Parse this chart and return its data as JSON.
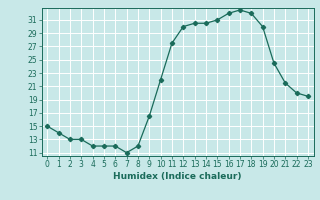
{
  "x": [
    0,
    1,
    2,
    3,
    4,
    5,
    6,
    7,
    8,
    9,
    10,
    11,
    12,
    13,
    14,
    15,
    16,
    17,
    18,
    19,
    20,
    21,
    22,
    23
  ],
  "y": [
    15,
    14,
    13,
    13,
    12,
    12,
    12,
    11,
    12,
    16.5,
    22,
    27.5,
    30,
    30.5,
    30.5,
    31,
    32,
    32.5,
    32,
    30,
    24.5,
    21.5,
    20,
    19.5
  ],
  "line_color": "#1a6b5a",
  "marker": "D",
  "markersize": 2.2,
  "bg_color": "#c8e8e8",
  "grid_color": "#ffffff",
  "xlabel": "Humidex (Indice chaleur)",
  "xticks": [
    0,
    1,
    2,
    3,
    4,
    5,
    6,
    7,
    8,
    9,
    10,
    11,
    12,
    13,
    14,
    15,
    16,
    17,
    18,
    19,
    20,
    21,
    22,
    23
  ],
  "yticks": [
    11,
    13,
    15,
    17,
    19,
    21,
    23,
    25,
    27,
    29,
    31
  ],
  "ylim": [
    10.5,
    32.8
  ],
  "xlim": [
    -0.5,
    23.5
  ],
  "label_fontsize": 6.5,
  "tick_fontsize": 5.5
}
